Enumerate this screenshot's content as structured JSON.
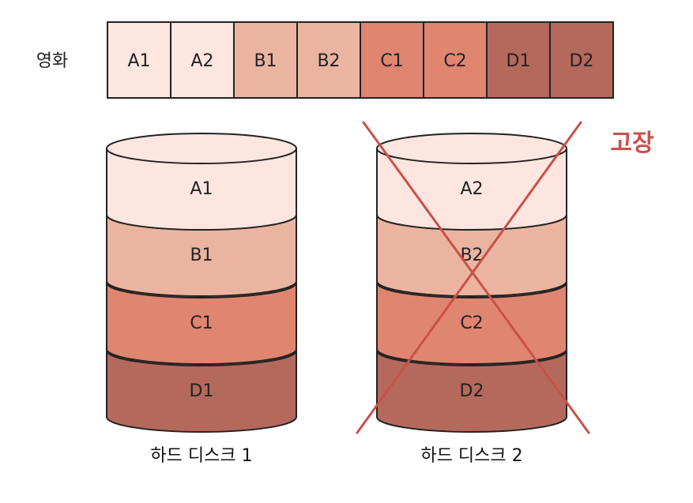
{
  "movie": {
    "label": "영화",
    "segments": [
      {
        "label": "A1",
        "color": "#fde6df"
      },
      {
        "label": "A2",
        "color": "#fde6df"
      },
      {
        "label": "B1",
        "color": "#ebb4a0"
      },
      {
        "label": "B2",
        "color": "#ebb4a0"
      },
      {
        "label": "C1",
        "color": "#df8570"
      },
      {
        "label": "C2",
        "color": "#df8570"
      },
      {
        "label": "D1",
        "color": "#b5695c"
      },
      {
        "label": "D2",
        "color": "#b5695c"
      }
    ]
  },
  "disks": [
    {
      "caption": "하드 디스크 1",
      "failed": false,
      "blocks": [
        {
          "label": "A1",
          "color": "#fde6df"
        },
        {
          "label": "B1",
          "color": "#ebb4a0"
        },
        {
          "label": "C1",
          "color": "#df8570"
        },
        {
          "label": "D1",
          "color": "#b5695c"
        }
      ]
    },
    {
      "caption": "하드 디스크 2",
      "failed": true,
      "blocks": [
        {
          "label": "A2",
          "color": "#fde6df"
        },
        {
          "label": "B2",
          "color": "#ebb4a0"
        },
        {
          "label": "C2",
          "color": "#df8570"
        },
        {
          "label": "D2",
          "color": "#b5695c"
        }
      ]
    }
  ],
  "failure_label": "고장",
  "colors": {
    "outline": "#222222",
    "failure": "#c9504a"
  }
}
